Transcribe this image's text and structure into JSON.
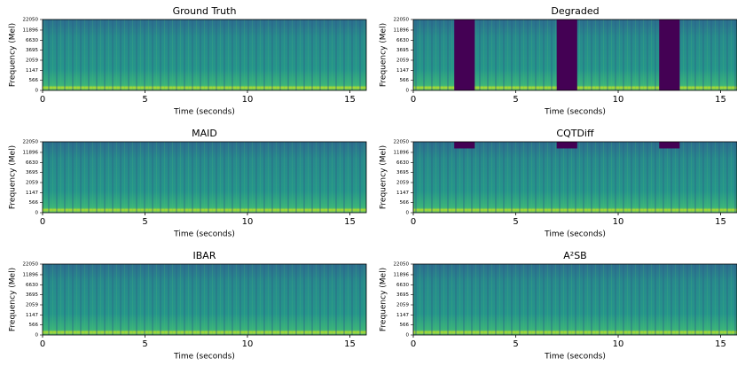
{
  "chart_data": [
    {
      "type": "spectrogram",
      "title": "Ground Truth",
      "xlabel": "Time (seconds)",
      "ylabel": "Frequency (Mel)",
      "xlim": [
        0,
        15.8
      ],
      "xticks": [
        0,
        5,
        10,
        15
      ],
      "ylim": [
        0,
        22050
      ],
      "yticks": [
        0,
        566,
        1147,
        2059,
        3695,
        6630,
        11896,
        22050
      ],
      "yscale": "mel",
      "masked": [],
      "mask_color": "#440154"
    },
    {
      "type": "spectrogram",
      "title": "Degraded",
      "xlabel": "Time (seconds)",
      "ylabel": "Frequency (Mel)",
      "xlim": [
        0,
        15.8
      ],
      "xticks": [
        0,
        5,
        10,
        15
      ],
      "ylim": [
        0,
        22050
      ],
      "yticks": [
        0,
        566,
        1147,
        2059,
        3695,
        6630,
        11896,
        22050
      ],
      "yscale": "mel",
      "masked": [
        {
          "x": [
            2,
            3
          ],
          "y": [
            0,
            22050
          ]
        },
        {
          "x": [
            7,
            8
          ],
          "y": [
            0,
            22050
          ]
        },
        {
          "x": [
            12,
            13
          ],
          "y": [
            0,
            22050
          ]
        }
      ],
      "mask_color": "#440154"
    },
    {
      "type": "spectrogram",
      "title": "MAID",
      "xlabel": "Time (seconds)",
      "ylabel": "Frequency (Mel)",
      "xlim": [
        0,
        15.8
      ],
      "xticks": [
        0,
        5,
        10,
        15
      ],
      "ylim": [
        0,
        22050
      ],
      "yticks": [
        0,
        566,
        1147,
        2059,
        3695,
        6630,
        11896,
        22050
      ],
      "yscale": "mel",
      "masked": [],
      "mask_color": "#440154"
    },
    {
      "type": "spectrogram",
      "title": "CQTDiff",
      "xlabel": "Time (seconds)",
      "ylabel": "Frequency (Mel)",
      "xlim": [
        0,
        15.8
      ],
      "xticks": [
        0,
        5,
        10,
        15
      ],
      "ylim": [
        0,
        22050
      ],
      "yticks": [
        0,
        566,
        1147,
        2059,
        3695,
        6630,
        11896,
        22050
      ],
      "yscale": "mel",
      "masked": [
        {
          "x": [
            2,
            3
          ],
          "y": [
            15000,
            22050
          ]
        },
        {
          "x": [
            7,
            8
          ],
          "y": [
            15000,
            22050
          ]
        },
        {
          "x": [
            12,
            13
          ],
          "y": [
            15000,
            22050
          ]
        }
      ],
      "mask_color": "#440154"
    },
    {
      "type": "spectrogram",
      "title": "IBAR",
      "xlabel": "Time (seconds)",
      "ylabel": "Frequency (Mel)",
      "xlim": [
        0,
        15.8
      ],
      "xticks": [
        0,
        5,
        10,
        15
      ],
      "ylim": [
        0,
        22050
      ],
      "yticks": [
        0,
        566,
        1147,
        2059,
        3695,
        6630,
        11896,
        22050
      ],
      "yscale": "mel",
      "masked": [],
      "mask_color": "#440154"
    },
    {
      "type": "spectrogram",
      "title": "A²SB",
      "xlabel": "Time (seconds)",
      "ylabel": "Frequency (Mel)",
      "xlim": [
        0,
        15.8
      ],
      "xticks": [
        0,
        5,
        10,
        15
      ],
      "ylim": [
        0,
        22050
      ],
      "yticks": [
        0,
        566,
        1147,
        2059,
        3695,
        6630,
        11896,
        22050
      ],
      "yscale": "mel",
      "masked": [],
      "mask_color": "#440154"
    }
  ]
}
